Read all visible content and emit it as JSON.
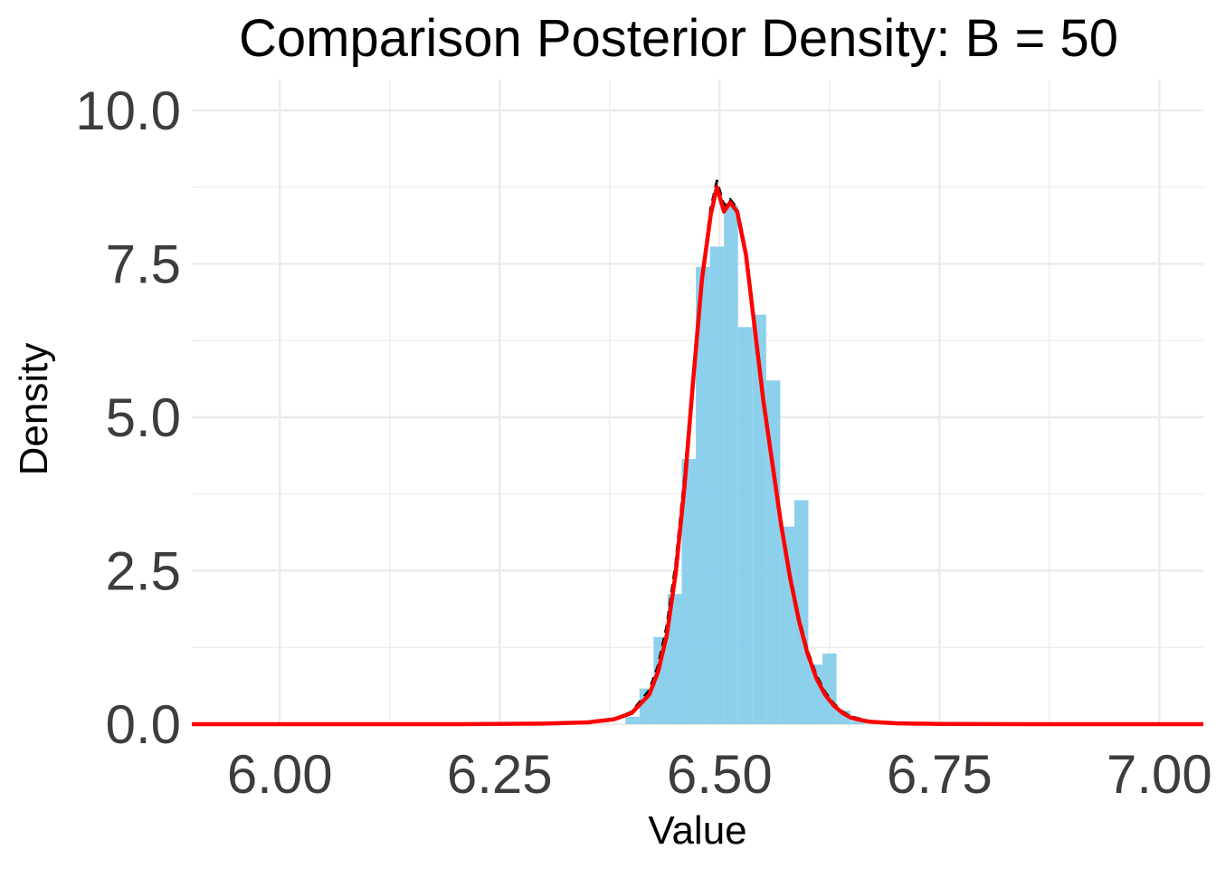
{
  "chart_data": {
    "type": "histogram",
    "title": "Comparison Posterior Density: B = 50",
    "xlabel": "Value",
    "ylabel": "Density",
    "xlim": [
      5.9,
      7.05
    ],
    "ylim": [
      0,
      10.5
    ],
    "x_ticks": [
      "6.00",
      "6.25",
      "6.50",
      "6.75",
      "7.00"
    ],
    "y_ticks": [
      "0.0",
      "2.5",
      "5.0",
      "7.5",
      "10.0"
    ],
    "grid": true,
    "legend": "none",
    "colors": {
      "histogram_fill": "#87CEEB",
      "density_solid": "#FF0000",
      "density_dashed": "#000000",
      "grid": "#EBEBEB"
    },
    "histogram": {
      "bin_width": 0.016,
      "bins": [
        {
          "x0": 6.393,
          "x1": 6.409,
          "density": 0.12
        },
        {
          "x0": 6.409,
          "x1": 6.425,
          "density": 0.58
        },
        {
          "x0": 6.425,
          "x1": 6.441,
          "density": 1.42
        },
        {
          "x0": 6.441,
          "x1": 6.457,
          "density": 2.12
        },
        {
          "x0": 6.457,
          "x1": 6.473,
          "density": 4.32
        },
        {
          "x0": 6.473,
          "x1": 6.489,
          "density": 7.45
        },
        {
          "x0": 6.489,
          "x1": 6.505,
          "density": 7.78
        },
        {
          "x0": 6.505,
          "x1": 6.521,
          "density": 8.45
        },
        {
          "x0": 6.521,
          "x1": 6.537,
          "density": 6.47
        },
        {
          "x0": 6.537,
          "x1": 6.553,
          "density": 6.67
        },
        {
          "x0": 6.553,
          "x1": 6.569,
          "density": 5.6
        },
        {
          "x0": 6.569,
          "x1": 6.585,
          "density": 3.22
        },
        {
          "x0": 6.585,
          "x1": 6.601,
          "density": 3.65
        },
        {
          "x0": 6.601,
          "x1": 6.617,
          "density": 0.97
        },
        {
          "x0": 6.617,
          "x1": 6.633,
          "density": 1.15
        },
        {
          "x0": 6.633,
          "x1": 6.649,
          "density": 0.22
        },
        {
          "x0": 6.649,
          "x1": 6.665,
          "density": 0.05
        }
      ]
    },
    "series": [
      {
        "style": "dashed",
        "x": [
          5.9,
          6.2,
          6.3,
          6.35,
          6.38,
          6.4,
          6.42,
          6.43,
          6.44,
          6.45,
          6.46,
          6.47,
          6.48,
          6.49,
          6.497,
          6.505,
          6.512,
          6.52,
          6.53,
          6.54,
          6.55,
          6.56,
          6.57,
          6.58,
          6.59,
          6.6,
          6.61,
          6.62,
          6.63,
          6.64,
          6.65,
          6.67,
          6.7,
          6.75,
          6.85,
          7.05
        ],
        "y": [
          0,
          0,
          0.01,
          0.03,
          0.08,
          0.2,
          0.55,
          0.95,
          1.6,
          2.6,
          4.0,
          5.7,
          7.3,
          8.4,
          8.85,
          8.45,
          8.55,
          8.4,
          7.7,
          6.5,
          5.3,
          4.3,
          3.3,
          2.45,
          1.75,
          1.2,
          0.8,
          0.52,
          0.33,
          0.2,
          0.12,
          0.05,
          0.02,
          0.005,
          0,
          0
        ]
      },
      {
        "style": "solid",
        "x": [
          5.9,
          6.2,
          6.3,
          6.35,
          6.38,
          6.4,
          6.42,
          6.43,
          6.44,
          6.45,
          6.46,
          6.47,
          6.48,
          6.49,
          6.497,
          6.505,
          6.512,
          6.52,
          6.53,
          6.54,
          6.55,
          6.56,
          6.57,
          6.58,
          6.59,
          6.6,
          6.61,
          6.62,
          6.63,
          6.64,
          6.65,
          6.67,
          6.7,
          6.75,
          6.85,
          7.05
        ],
        "y": [
          0,
          0,
          0.01,
          0.03,
          0.08,
          0.18,
          0.48,
          0.85,
          1.45,
          2.45,
          3.85,
          5.6,
          7.25,
          8.3,
          8.75,
          8.35,
          8.5,
          8.35,
          7.65,
          6.45,
          5.25,
          4.25,
          3.25,
          2.4,
          1.7,
          1.15,
          0.75,
          0.48,
          0.3,
          0.18,
          0.1,
          0.04,
          0.015,
          0.003,
          0,
          0
        ]
      }
    ]
  }
}
